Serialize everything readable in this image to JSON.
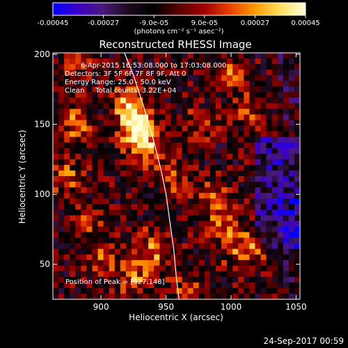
{
  "colorbar": {
    "tick_labels": [
      "-0.00045",
      "-0.00027",
      "-9.0e-05",
      "9.0e-05",
      "0.00027",
      "0.00045"
    ],
    "tick_values": [
      -0.00045,
      -0.00027,
      -9e-05,
      9e-05,
      0.00027,
      0.00045
    ],
    "units": "(photons cm⁻² s⁻¹ asec⁻²)",
    "range": [
      -0.00045,
      0.00045
    ],
    "colors": [
      "#0000ff",
      "#3b00c8",
      "#4a1a78",
      "#1c0a1e",
      "#000000",
      "#5a0000",
      "#a00000",
      "#e84000",
      "#ff9a00",
      "#ffe060",
      "#ffffd8"
    ]
  },
  "annotations": {
    "time": "6-Apr-2015 16:53:08.000 to 17:03:08.000",
    "detectors": "Detectors: 3F 5F 6F 7F 8F 9F, Att 0",
    "energy": "Energy Range: 25.0 - 50.0 keV",
    "clean": "Clean     Total counts: 3.22E+04",
    "peak": "Position of Peak = [927,148]"
  },
  "footer": {
    "timestamp": "24-Sep-2017 00:59"
  },
  "chart_data": {
    "type": "heatmap",
    "title": "Reconstructed RHESSI Image",
    "xlabel": "Heliocentric X (arcsec)",
    "ylabel": "Heliocentric Y (arcsec)",
    "xlim": [
      863,
      1053
    ],
    "ylim": [
      25,
      201
    ],
    "x_ticks": [
      900,
      950,
      1000,
      1050
    ],
    "y_ticks": [
      50,
      100,
      150,
      200
    ],
    "grid": false,
    "peak": {
      "x": 927,
      "y": 148
    },
    "limb": {
      "x": [
        918,
        925,
        932,
        940,
        946,
        950,
        953,
        956,
        958,
        960
      ],
      "y": [
        201,
        185,
        165,
        140,
        118,
        100,
        80,
        60,
        40,
        25
      ]
    }
  }
}
